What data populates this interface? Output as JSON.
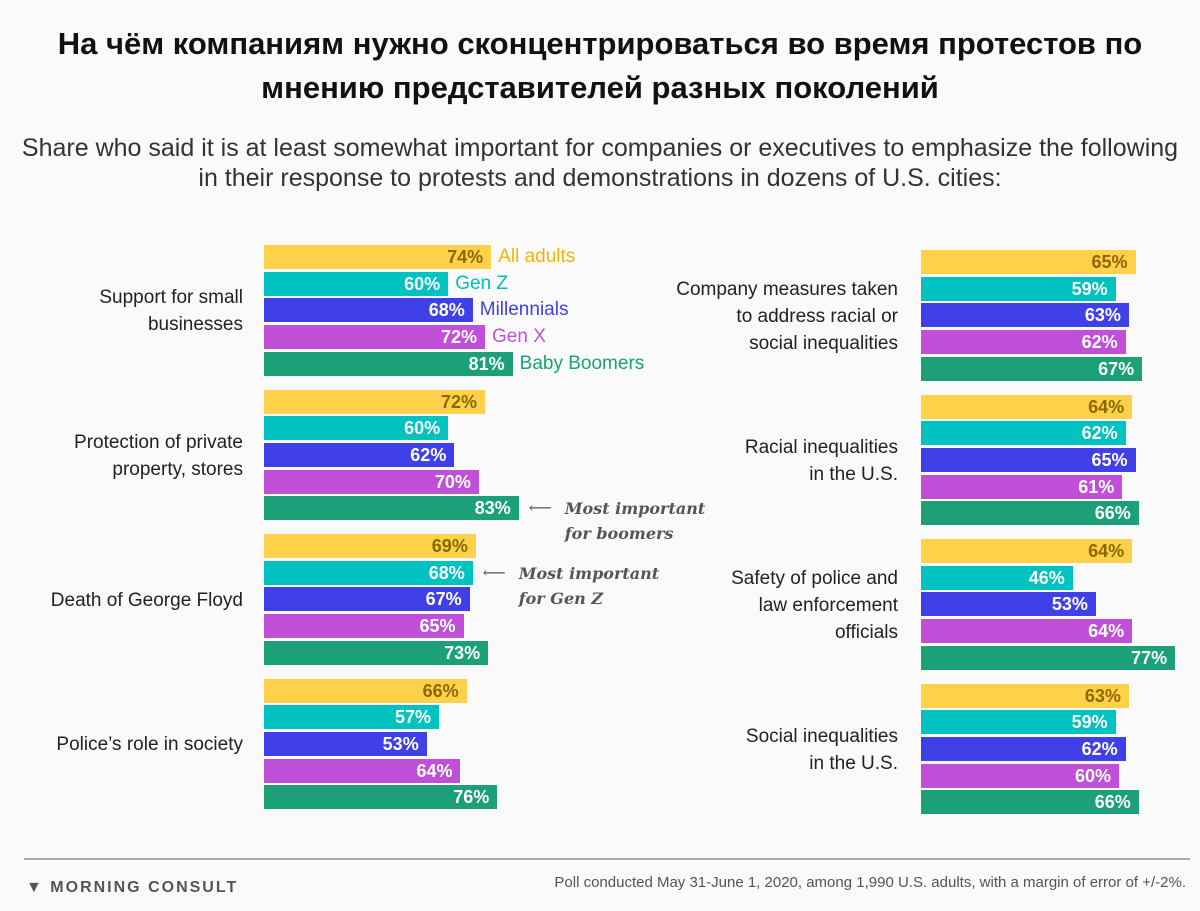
{
  "title": "На чём компаниям нужно сконцентрироваться во время протестов по мнению представителей разных поколений",
  "subtitle": "Share who said it is at least somewhat important for companies or executives to emphasize the following in their response to protests and demonstrations in dozens of U.S. cities:",
  "chart_data": {
    "type": "bar",
    "orientation": "horizontal",
    "series_names": [
      "All adults",
      "Gen Z",
      "Millennials",
      "Gen X",
      "Baby Boomers"
    ],
    "colors": [
      "#FFD04A",
      "#00C2C0",
      "#4040E8",
      "#C050D8",
      "#1BA078"
    ],
    "legend_colors": [
      "#F2B600",
      "#00BDBB",
      "#4040E8",
      "#C050D8",
      "#1BA078"
    ],
    "panels": [
      {
        "categories": [
          "Support for small businesses",
          "Protection of private property, stores",
          "Death of George Floyd",
          "Police’s role in society"
        ],
        "values": [
          [
            74,
            60,
            68,
            72,
            81
          ],
          [
            72,
            60,
            62,
            70,
            83
          ],
          [
            69,
            68,
            67,
            65,
            73
          ],
          [
            66,
            57,
            53,
            64,
            76
          ]
        ]
      },
      {
        "categories": [
          "Company measures taken to address racial or social inequalities",
          "Racial inequalities in the U.S.",
          "Safety of police and law enforcement officials",
          "Social inequalities in the U.S."
        ],
        "values": [
          [
            65,
            59,
            63,
            62,
            67
          ],
          [
            64,
            62,
            65,
            61,
            66
          ],
          [
            64,
            46,
            53,
            64,
            77
          ],
          [
            63,
            59,
            62,
            60,
            66
          ]
        ]
      }
    ],
    "annotations": [
      {
        "text": "Most important for boomers",
        "category": "Protection of private property, stores",
        "series": "Baby Boomers"
      },
      {
        "text": "Most important for Gen Z",
        "category": "Death of George Floyd",
        "series": "Gen Z"
      }
    ],
    "value_suffix": "%"
  },
  "footer": {
    "logo": "MORNING CONSULT",
    "source": "Poll conducted May 31-June 1, 2020, among 1,990 U.S. adults, with a margin of error of +/-2%."
  }
}
